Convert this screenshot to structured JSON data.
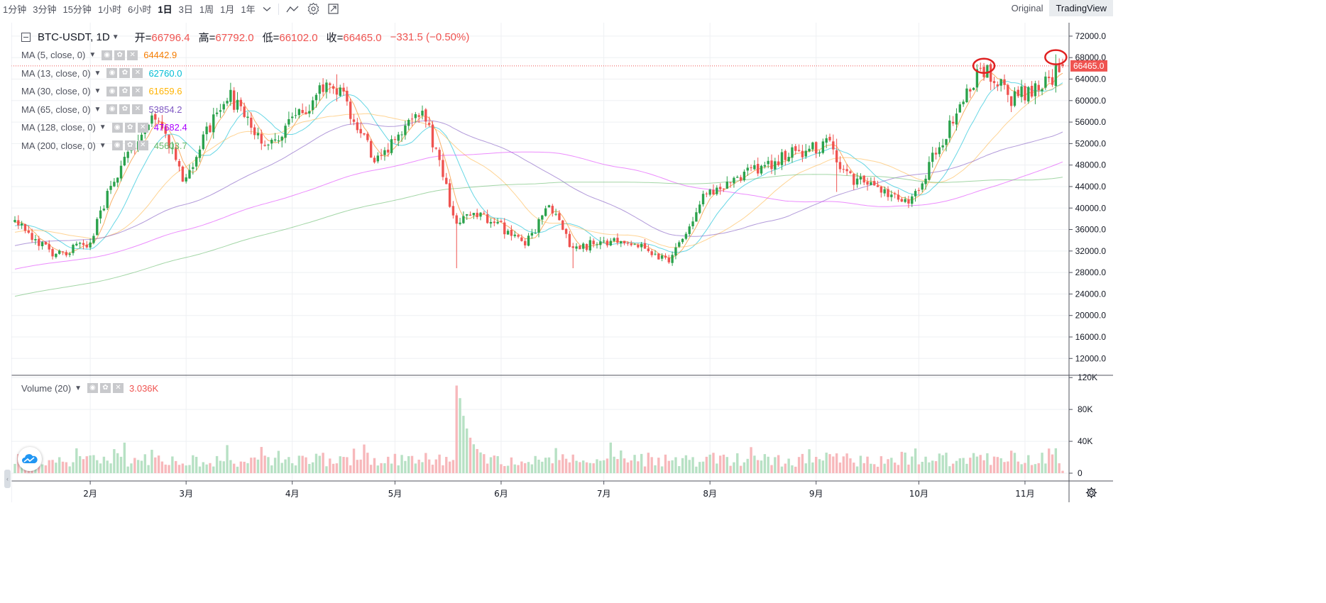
{
  "toolbar": {
    "timeframes": [
      "1分钟",
      "3分钟",
      "15分钟",
      "1小时",
      "6小时",
      "1日",
      "3日",
      "1周",
      "1月",
      "1年"
    ],
    "active_timeframe": "1日",
    "views": [
      "Original",
      "TradingView"
    ],
    "active_view": "TradingView",
    "icons": [
      "chevron-down-icon",
      "indicator-icon",
      "gear-icon",
      "fullscreen-icon"
    ]
  },
  "legend": {
    "symbol": "BTC-USDT, 1D",
    "ohlc": [
      {
        "label": "开=",
        "value": "66796.4"
      },
      {
        "label": "高=",
        "value": "67792.0"
      },
      {
        "label": "低=",
        "value": "66102.0"
      },
      {
        "label": "收=",
        "value": "66465.0"
      }
    ],
    "change": "−331.5 (−0.50%)",
    "ma": [
      {
        "label": "MA (5, close, 0)",
        "value": "64442.9",
        "color": "#f57c00"
      },
      {
        "label": "MA (13, close, 0)",
        "value": "62760.0",
        "color": "#00bcd4"
      },
      {
        "label": "MA (30, close, 0)",
        "value": "61659.6",
        "color": "#ffb74d"
      },
      {
        "label": "MA (65, close, 0)",
        "value": "53854.2",
        "color": "#7e57c2"
      },
      {
        "label": "MA (128, close, 0)",
        "value": "47682.4",
        "color": "#e040fb"
      },
      {
        "label": "MA (200, close, 0)",
        "value": "45603.7",
        "color": "#66bb6a"
      }
    ],
    "volume": {
      "label": "Volume (20)",
      "value": "3.036K"
    }
  },
  "colors": {
    "up": "#26a69a",
    "candle_up": "#2ba24c",
    "down": "#ef5350",
    "vol_up": "#b7e1c4",
    "vol_down": "#f7b8bb",
    "grid": "#eef0f3",
    "highlight_circle": "#e02020"
  },
  "chart_data": [
    {
      "type": "candlestick",
      "title": "BTC-USDT, 1D",
      "price_scale": {
        "ticks": [
          "12000.0",
          "16000.0",
          "20000.0",
          "24000.0",
          "28000.0",
          "32000.0",
          "36000.0",
          "40000.0",
          "44000.0",
          "48000.0",
          "52000.0",
          "56000.0",
          "60000.0",
          "64000.0",
          "68000.0",
          "72000.0"
        ],
        "range": [
          9000,
          74500
        ],
        "last_price": "66465.0"
      },
      "time_scale": {
        "months": [
          "2月",
          "3月",
          "4月",
          "5月",
          "6月",
          "7月",
          "8月",
          "9月",
          "10月",
          "11月"
        ],
        "range": [
          "2021-01-10",
          "2021-11-12"
        ]
      },
      "close_anchors": [
        [
          "2021-01-10",
          38300
        ],
        [
          "2021-01-21",
          31000
        ],
        [
          "2021-02-01",
          33500
        ],
        [
          "2021-02-08",
          46000
        ],
        [
          "2021-02-21",
          57500
        ],
        [
          "2021-02-28",
          45200
        ],
        [
          "2021-03-13",
          61200
        ],
        [
          "2021-03-25",
          51500
        ],
        [
          "2021-04-13",
          63800
        ],
        [
          "2021-04-25",
          49000
        ],
        [
          "2021-05-09",
          58500
        ],
        [
          "2021-05-19",
          37000
        ],
        [
          "2021-05-26",
          39000
        ],
        [
          "2021-06-08",
          33500
        ],
        [
          "2021-06-15",
          40000
        ],
        [
          "2021-06-22",
          32500
        ],
        [
          "2021-07-06",
          34500
        ],
        [
          "2021-07-20",
          29800
        ],
        [
          "2021-07-30",
          42000
        ],
        [
          "2021-08-14",
          47000
        ],
        [
          "2021-08-22",
          49500
        ],
        [
          "2021-09-06",
          52000
        ],
        [
          "2021-09-08",
          46500
        ],
        [
          "2021-09-20",
          43000
        ],
        [
          "2021-09-29",
          41500
        ],
        [
          "2021-10-15",
          61500
        ],
        [
          "2021-10-20",
          66000
        ],
        [
          "2021-10-28",
          60500
        ],
        [
          "2021-11-08",
          63500
        ],
        [
          "2021-11-11",
          66465
        ]
      ],
      "highlighted_highs": [
        "2021-10-20",
        "2021-11-10"
      ],
      "moving_averages": [
        "MA 5",
        "MA 13",
        "MA 30",
        "MA 65",
        "MA 128",
        "MA 200"
      ]
    },
    {
      "type": "bar",
      "title": "Volume (20)",
      "value_scale": {
        "ticks": [
          "0",
          "40K",
          "80K",
          "120K"
        ],
        "range": [
          0,
          122000
        ]
      },
      "peak": {
        "date": "2021-05-19",
        "value": 110000
      },
      "typical_range": [
        8000,
        26000
      ]
    }
  ]
}
